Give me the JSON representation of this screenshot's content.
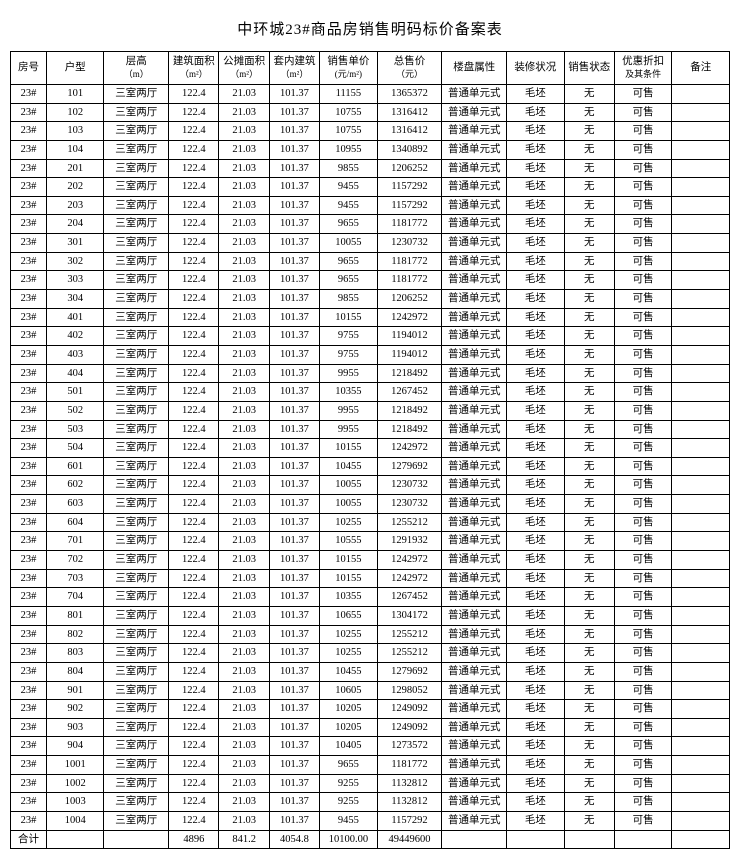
{
  "title": "中环城23#商品房销售明码标价备案表",
  "columns": [
    {
      "label": "房号",
      "sub": ""
    },
    {
      "label": "户型",
      "sub": ""
    },
    {
      "label": "层高",
      "sub": "（m）"
    },
    {
      "label": "建筑面积",
      "sub": "（m²）"
    },
    {
      "label": "公摊面积",
      "sub": "（m²）"
    },
    {
      "label": "套内建筑",
      "sub": "（m²）"
    },
    {
      "label": "销售单价",
      "sub": "(元/m²)"
    },
    {
      "label": "总售价",
      "sub": "（元）"
    },
    {
      "label": "楼盘属性",
      "sub": ""
    },
    {
      "label": "装修状况",
      "sub": ""
    },
    {
      "label": "销售状态",
      "sub": ""
    },
    {
      "label": "优惠折扣",
      "sub": "及其条件"
    },
    {
      "label": "备注",
      "sub": ""
    }
  ],
  "rows": [
    [
      "23#",
      "101",
      "三室两厅",
      "122.4",
      "21.03",
      "101.37",
      "11155",
      "1365372",
      "普通单元式",
      "毛坯",
      "无",
      "可售",
      ""
    ],
    [
      "23#",
      "102",
      "三室两厅",
      "122.4",
      "21.03",
      "101.37",
      "10755",
      "1316412",
      "普通单元式",
      "毛坯",
      "无",
      "可售",
      ""
    ],
    [
      "23#",
      "103",
      "三室两厅",
      "122.4",
      "21.03",
      "101.37",
      "10755",
      "1316412",
      "普通单元式",
      "毛坯",
      "无",
      "可售",
      ""
    ],
    [
      "23#",
      "104",
      "三室两厅",
      "122.4",
      "21.03",
      "101.37",
      "10955",
      "1340892",
      "普通单元式",
      "毛坯",
      "无",
      "可售",
      ""
    ],
    [
      "23#",
      "201",
      "三室两厅",
      "122.4",
      "21.03",
      "101.37",
      "9855",
      "1206252",
      "普通单元式",
      "毛坯",
      "无",
      "可售",
      ""
    ],
    [
      "23#",
      "202",
      "三室两厅",
      "122.4",
      "21.03",
      "101.37",
      "9455",
      "1157292",
      "普通单元式",
      "毛坯",
      "无",
      "可售",
      ""
    ],
    [
      "23#",
      "203",
      "三室两厅",
      "122.4",
      "21.03",
      "101.37",
      "9455",
      "1157292",
      "普通单元式",
      "毛坯",
      "无",
      "可售",
      ""
    ],
    [
      "23#",
      "204",
      "三室两厅",
      "122.4",
      "21.03",
      "101.37",
      "9655",
      "1181772",
      "普通单元式",
      "毛坯",
      "无",
      "可售",
      ""
    ],
    [
      "23#",
      "301",
      "三室两厅",
      "122.4",
      "21.03",
      "101.37",
      "10055",
      "1230732",
      "普通单元式",
      "毛坯",
      "无",
      "可售",
      ""
    ],
    [
      "23#",
      "302",
      "三室两厅",
      "122.4",
      "21.03",
      "101.37",
      "9655",
      "1181772",
      "普通单元式",
      "毛坯",
      "无",
      "可售",
      ""
    ],
    [
      "23#",
      "303",
      "三室两厅",
      "122.4",
      "21.03",
      "101.37",
      "9655",
      "1181772",
      "普通单元式",
      "毛坯",
      "无",
      "可售",
      ""
    ],
    [
      "23#",
      "304",
      "三室两厅",
      "122.4",
      "21.03",
      "101.37",
      "9855",
      "1206252",
      "普通单元式",
      "毛坯",
      "无",
      "可售",
      ""
    ],
    [
      "23#",
      "401",
      "三室两厅",
      "122.4",
      "21.03",
      "101.37",
      "10155",
      "1242972",
      "普通单元式",
      "毛坯",
      "无",
      "可售",
      ""
    ],
    [
      "23#",
      "402",
      "三室两厅",
      "122.4",
      "21.03",
      "101.37",
      "9755",
      "1194012",
      "普通单元式",
      "毛坯",
      "无",
      "可售",
      ""
    ],
    [
      "23#",
      "403",
      "三室两厅",
      "122.4",
      "21.03",
      "101.37",
      "9755",
      "1194012",
      "普通单元式",
      "毛坯",
      "无",
      "可售",
      ""
    ],
    [
      "23#",
      "404",
      "三室两厅",
      "122.4",
      "21.03",
      "101.37",
      "9955",
      "1218492",
      "普通单元式",
      "毛坯",
      "无",
      "可售",
      ""
    ],
    [
      "23#",
      "501",
      "三室两厅",
      "122.4",
      "21.03",
      "101.37",
      "10355",
      "1267452",
      "普通单元式",
      "毛坯",
      "无",
      "可售",
      ""
    ],
    [
      "23#",
      "502",
      "三室两厅",
      "122.4",
      "21.03",
      "101.37",
      "9955",
      "1218492",
      "普通单元式",
      "毛坯",
      "无",
      "可售",
      ""
    ],
    [
      "23#",
      "503",
      "三室两厅",
      "122.4",
      "21.03",
      "101.37",
      "9955",
      "1218492",
      "普通单元式",
      "毛坯",
      "无",
      "可售",
      ""
    ],
    [
      "23#",
      "504",
      "三室两厅",
      "122.4",
      "21.03",
      "101.37",
      "10155",
      "1242972",
      "普通单元式",
      "毛坯",
      "无",
      "可售",
      ""
    ],
    [
      "23#",
      "601",
      "三室两厅",
      "122.4",
      "21.03",
      "101.37",
      "10455",
      "1279692",
      "普通单元式",
      "毛坯",
      "无",
      "可售",
      ""
    ],
    [
      "23#",
      "602",
      "三室两厅",
      "122.4",
      "21.03",
      "101.37",
      "10055",
      "1230732",
      "普通单元式",
      "毛坯",
      "无",
      "可售",
      ""
    ],
    [
      "23#",
      "603",
      "三室两厅",
      "122.4",
      "21.03",
      "101.37",
      "10055",
      "1230732",
      "普通单元式",
      "毛坯",
      "无",
      "可售",
      ""
    ],
    [
      "23#",
      "604",
      "三室两厅",
      "122.4",
      "21.03",
      "101.37",
      "10255",
      "1255212",
      "普通单元式",
      "毛坯",
      "无",
      "可售",
      ""
    ],
    [
      "23#",
      "701",
      "三室两厅",
      "122.4",
      "21.03",
      "101.37",
      "10555",
      "1291932",
      "普通单元式",
      "毛坯",
      "无",
      "可售",
      ""
    ],
    [
      "23#",
      "702",
      "三室两厅",
      "122.4",
      "21.03",
      "101.37",
      "10155",
      "1242972",
      "普通单元式",
      "毛坯",
      "无",
      "可售",
      ""
    ],
    [
      "23#",
      "703",
      "三室两厅",
      "122.4",
      "21.03",
      "101.37",
      "10155",
      "1242972",
      "普通单元式",
      "毛坯",
      "无",
      "可售",
      ""
    ],
    [
      "23#",
      "704",
      "三室两厅",
      "122.4",
      "21.03",
      "101.37",
      "10355",
      "1267452",
      "普通单元式",
      "毛坯",
      "无",
      "可售",
      ""
    ],
    [
      "23#",
      "801",
      "三室两厅",
      "122.4",
      "21.03",
      "101.37",
      "10655",
      "1304172",
      "普通单元式",
      "毛坯",
      "无",
      "可售",
      ""
    ],
    [
      "23#",
      "802",
      "三室两厅",
      "122.4",
      "21.03",
      "101.37",
      "10255",
      "1255212",
      "普通单元式",
      "毛坯",
      "无",
      "可售",
      ""
    ],
    [
      "23#",
      "803",
      "三室两厅",
      "122.4",
      "21.03",
      "101.37",
      "10255",
      "1255212",
      "普通单元式",
      "毛坯",
      "无",
      "可售",
      ""
    ],
    [
      "23#",
      "804",
      "三室两厅",
      "122.4",
      "21.03",
      "101.37",
      "10455",
      "1279692",
      "普通单元式",
      "毛坯",
      "无",
      "可售",
      ""
    ],
    [
      "23#",
      "901",
      "三室两厅",
      "122.4",
      "21.03",
      "101.37",
      "10605",
      "1298052",
      "普通单元式",
      "毛坯",
      "无",
      "可售",
      ""
    ],
    [
      "23#",
      "902",
      "三室两厅",
      "122.4",
      "21.03",
      "101.37",
      "10205",
      "1249092",
      "普通单元式",
      "毛坯",
      "无",
      "可售",
      ""
    ],
    [
      "23#",
      "903",
      "三室两厅",
      "122.4",
      "21.03",
      "101.37",
      "10205",
      "1249092",
      "普通单元式",
      "毛坯",
      "无",
      "可售",
      ""
    ],
    [
      "23#",
      "904",
      "三室两厅",
      "122.4",
      "21.03",
      "101.37",
      "10405",
      "1273572",
      "普通单元式",
      "毛坯",
      "无",
      "可售",
      ""
    ],
    [
      "23#",
      "1001",
      "三室两厅",
      "122.4",
      "21.03",
      "101.37",
      "9655",
      "1181772",
      "普通单元式",
      "毛坯",
      "无",
      "可售",
      ""
    ],
    [
      "23#",
      "1002",
      "三室两厅",
      "122.4",
      "21.03",
      "101.37",
      "9255",
      "1132812",
      "普通单元式",
      "毛坯",
      "无",
      "可售",
      ""
    ],
    [
      "23#",
      "1003",
      "三室两厅",
      "122.4",
      "21.03",
      "101.37",
      "9255",
      "1132812",
      "普通单元式",
      "毛坯",
      "无",
      "可售",
      ""
    ],
    [
      "23#",
      "1004",
      "三室两厅",
      "122.4",
      "21.03",
      "101.37",
      "9455",
      "1157292",
      "普通单元式",
      "毛坯",
      "无",
      "可售",
      ""
    ]
  ],
  "total_row": [
    "合计",
    "",
    "",
    "4896",
    "841.2",
    "4054.8",
    "10100.00",
    "49449600",
    "",
    "",
    "",
    "",
    ""
  ]
}
